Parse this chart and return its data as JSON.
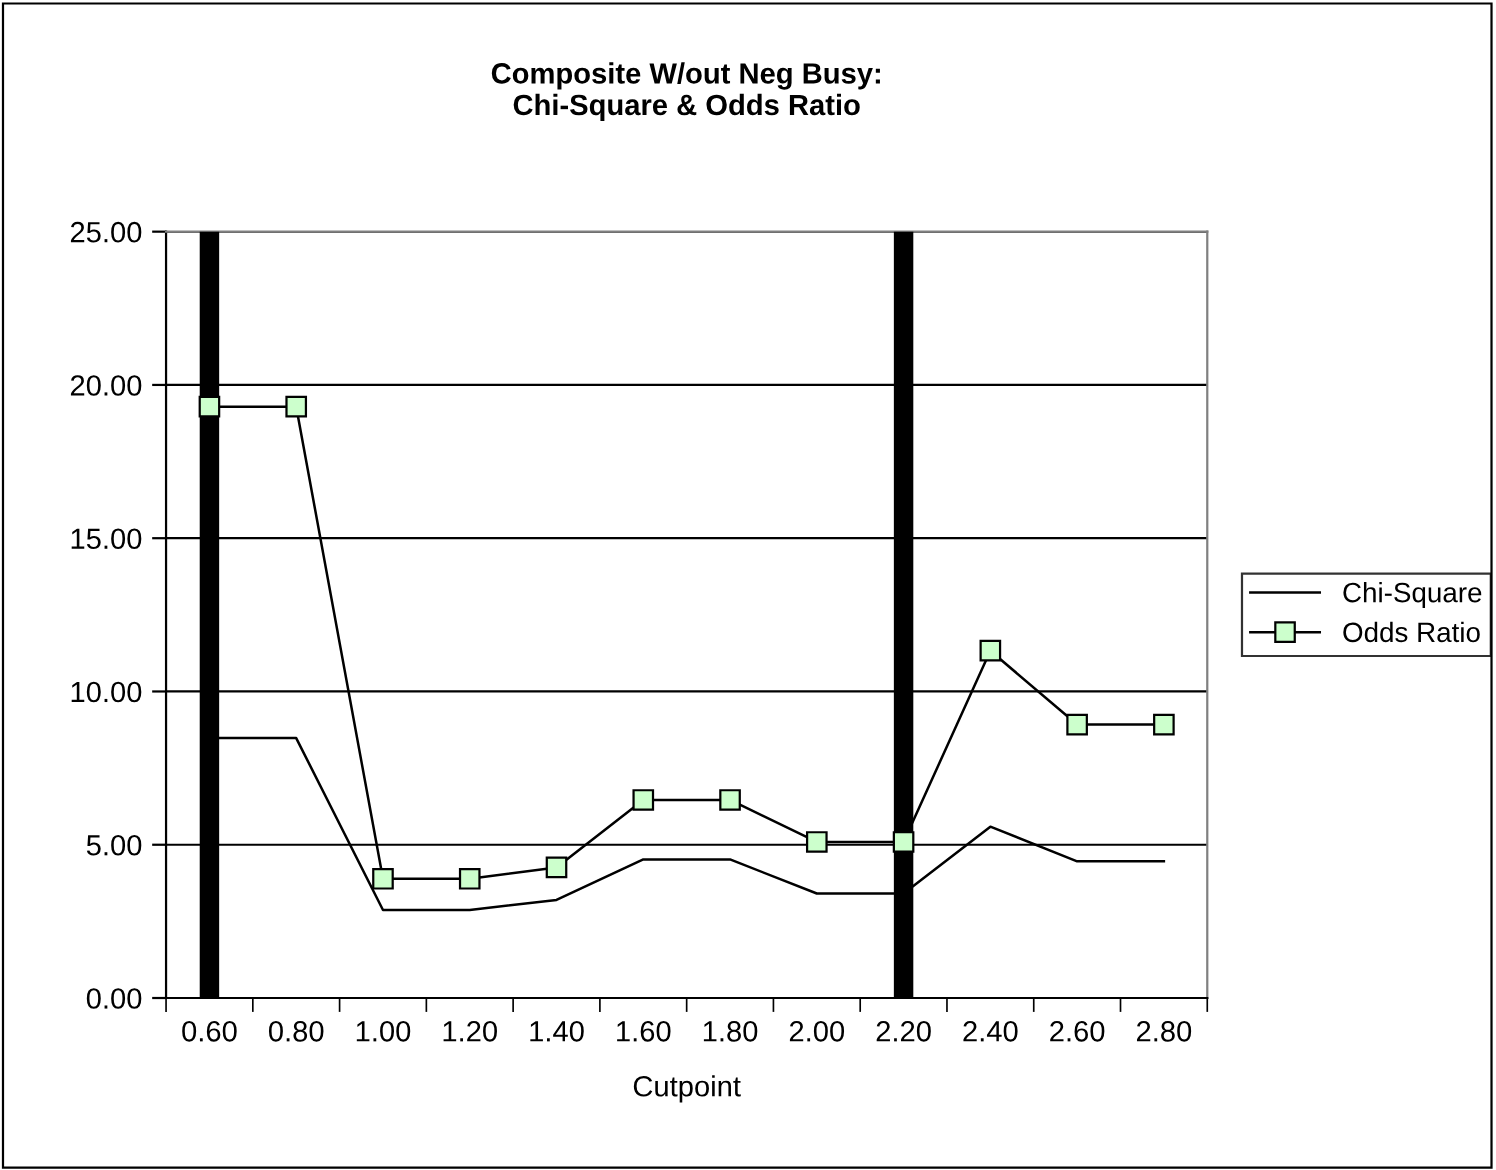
{
  "chart_data": {
    "type": "line",
    "title": "Composite W/out Neg Busy:\nChi-Square & Odds Ratio",
    "xlabel": "Cutpoint",
    "categories": [
      "0.60",
      "0.80",
      "1.00",
      "1.20",
      "1.40",
      "1.60",
      "1.80",
      "2.00",
      "2.20",
      "2.40",
      "2.60",
      "2.80"
    ],
    "series": [
      {
        "name": "Chi-Square",
        "color": "#000000",
        "marker": "none",
        "values": [
          8.48,
          8.48,
          2.87,
          2.87,
          3.2,
          4.52,
          4.52,
          3.41,
          3.41,
          5.59,
          4.46,
          4.46
        ]
      },
      {
        "name": "Odds Ratio",
        "color": "#ccffcc",
        "marker": "square",
        "values": [
          19.29,
          19.29,
          3.89,
          3.89,
          4.26,
          6.46,
          6.46,
          5.09,
          5.09,
          11.33,
          8.92,
          8.92
        ]
      }
    ],
    "ylim": [
      0,
      25
    ],
    "yticks": [
      {
        "value": 0,
        "label": "0.00"
      },
      {
        "value": 5,
        "label": "5.00"
      },
      {
        "value": 10,
        "label": "10.00"
      },
      {
        "value": 15,
        "label": "15.00"
      },
      {
        "value": 20,
        "label": "20.00"
      },
      {
        "value": 25,
        "label": "25.00"
      }
    ],
    "ref_lines": [
      {
        "axis": "x",
        "value": "0.60",
        "color": "#000000"
      },
      {
        "axis": "x",
        "value": "2.20",
        "color": "#000000"
      }
    ],
    "grid": "y",
    "legend": "right"
  }
}
